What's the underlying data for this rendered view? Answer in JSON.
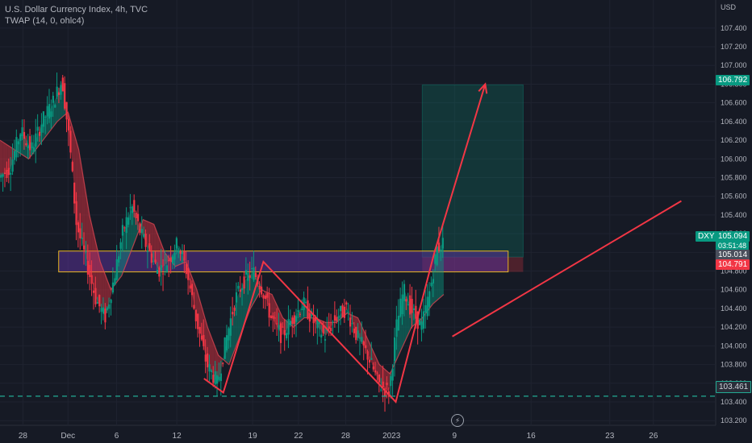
{
  "header": {
    "title": "U.S. Dollar Currency Index, 4h, TVC",
    "indicator": "TWAP (14, 0, ohlc4)"
  },
  "symbol": "DXY",
  "flash_icon": "lightning-icon",
  "price_tags": {
    "target": "106.792",
    "last_price": "105.094",
    "countdown": "03:51:48",
    "level_upper": "105.014",
    "level_lower": "104.791",
    "support": "103.461"
  },
  "colors": {
    "background": "#161a25",
    "bull": "#089981",
    "bear": "#f23645",
    "zone": "#4b2e83",
    "zone_border": "#e6b422",
    "drawing": "#f23645",
    "support_line": "#22ab94"
  },
  "chart_data": {
    "type": "candlestick",
    "y_unit": "USD",
    "ylim": [
      103.15,
      107.7
    ],
    "y_ticks": [
      "103.200",
      "103.400",
      "103.600",
      "103.800",
      "104.000",
      "104.200",
      "104.400",
      "104.600",
      "104.800",
      "105.000",
      "105.200",
      "105.400",
      "105.600",
      "105.800",
      "106.000",
      "106.200",
      "106.400",
      "106.600",
      "106.800",
      "107.000",
      "107.200",
      "107.400"
    ],
    "x_ticks": [
      "28",
      "Dec",
      "6",
      "12",
      "19",
      "22",
      "28",
      "2023",
      "9",
      "16",
      "23",
      "26"
    ],
    "x_tick_positions": [
      0.032,
      0.095,
      0.163,
      0.247,
      0.353,
      0.417,
      0.483,
      0.547,
      0.635,
      0.742,
      0.852,
      0.913
    ],
    "price_path": [
      [
        0.0,
        105.8
      ],
      [
        0.015,
        105.9
      ],
      [
        0.03,
        106.3
      ],
      [
        0.045,
        106.1
      ],
      [
        0.06,
        106.4
      ],
      [
        0.075,
        106.6
      ],
      [
        0.088,
        106.85
      ],
      [
        0.098,
        106.2
      ],
      [
        0.108,
        105.3
      ],
      [
        0.122,
        104.9
      ],
      [
        0.135,
        104.5
      ],
      [
        0.148,
        104.3
      ],
      [
        0.16,
        104.7
      ],
      [
        0.172,
        105.2
      ],
      [
        0.185,
        105.5
      ],
      [
        0.198,
        105.2
      ],
      [
        0.21,
        105.0
      ],
      [
        0.222,
        104.8
      ],
      [
        0.235,
        104.9
      ],
      [
        0.25,
        105.1
      ],
      [
        0.262,
        104.8
      ],
      [
        0.275,
        104.3
      ],
      [
        0.29,
        103.8
      ],
      [
        0.305,
        103.6
      ],
      [
        0.318,
        104.1
      ],
      [
        0.33,
        104.5
      ],
      [
        0.342,
        104.7
      ],
      [
        0.355,
        104.8
      ],
      [
        0.368,
        104.6
      ],
      [
        0.38,
        104.3
      ],
      [
        0.395,
        104.1
      ],
      [
        0.41,
        104.3
      ],
      [
        0.425,
        104.45
      ],
      [
        0.44,
        104.25
      ],
      [
        0.455,
        104.1
      ],
      [
        0.47,
        104.3
      ],
      [
        0.485,
        104.4
      ],
      [
        0.5,
        104.1
      ],
      [
        0.515,
        103.9
      ],
      [
        0.53,
        103.6
      ],
      [
        0.545,
        103.5
      ],
      [
        0.555,
        104.2
      ],
      [
        0.565,
        104.6
      ],
      [
        0.575,
        104.4
      ],
      [
        0.59,
        104.2
      ],
      [
        0.602,
        104.6
      ],
      [
        0.612,
        105.05
      ],
      [
        0.62,
        105.1
      ]
    ],
    "twap_path": [
      [
        0.0,
        106.2
      ],
      [
        0.02,
        106.1
      ],
      [
        0.04,
        106.0
      ],
      [
        0.06,
        106.2
      ],
      [
        0.08,
        106.4
      ],
      [
        0.095,
        106.5
      ],
      [
        0.11,
        106.1
      ],
      [
        0.125,
        105.4
      ],
      [
        0.14,
        104.9
      ],
      [
        0.155,
        104.6
      ],
      [
        0.17,
        104.75
      ],
      [
        0.185,
        105.05
      ],
      [
        0.2,
        105.35
      ],
      [
        0.215,
        105.3
      ],
      [
        0.23,
        105.0
      ],
      [
        0.245,
        104.85
      ],
      [
        0.26,
        104.9
      ],
      [
        0.275,
        104.6
      ],
      [
        0.29,
        104.2
      ],
      [
        0.305,
        103.9
      ],
      [
        0.32,
        103.8
      ],
      [
        0.335,
        104.1
      ],
      [
        0.35,
        104.4
      ],
      [
        0.365,
        104.6
      ],
      [
        0.38,
        104.55
      ],
      [
        0.395,
        104.3
      ],
      [
        0.41,
        104.2
      ],
      [
        0.425,
        104.3
      ],
      [
        0.44,
        104.3
      ],
      [
        0.455,
        104.25
      ],
      [
        0.47,
        104.25
      ],
      [
        0.485,
        104.35
      ],
      [
        0.5,
        104.3
      ],
      [
        0.515,
        104.05
      ],
      [
        0.53,
        103.8
      ],
      [
        0.545,
        103.7
      ],
      [
        0.56,
        103.95
      ],
      [
        0.575,
        104.2
      ],
      [
        0.59,
        104.3
      ],
      [
        0.605,
        104.45
      ],
      [
        0.62,
        104.55
      ]
    ],
    "zone": {
      "x_start": 0.082,
      "x_end": 0.71,
      "top": 105.014,
      "bottom": 104.791
    },
    "long_position": {
      "x_start": 0.59,
      "x_end": 0.731,
      "entry": 104.95,
      "target": 106.792,
      "stop": 104.791
    },
    "support_level": 103.461,
    "pattern_path": [
      [
        0.285,
        103.65
      ],
      [
        0.312,
        103.5
      ],
      [
        0.368,
        104.9
      ],
      [
        0.553,
        103.4
      ],
      [
        0.607,
        105.0
      ],
      [
        0.678,
        106.8
      ]
    ],
    "trend_line": [
      [
        0.632,
        104.1
      ],
      [
        0.952,
        105.55
      ]
    ]
  }
}
